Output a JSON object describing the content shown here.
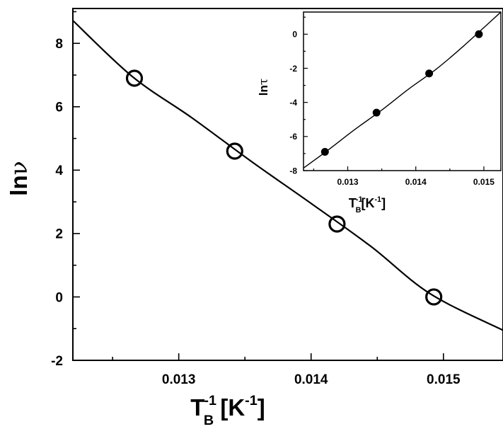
{
  "chart_data": [
    {
      "type": "scatter",
      "title": "",
      "xlabel": {
        "main": "T",
        "sub": "B",
        "sup": "-1",
        "rest": " [K",
        "unit_sup": "-1",
        "close": "]"
      },
      "ylabel": {
        "main": "ln",
        "greek": "ν"
      },
      "xlim": [
        0.0122,
        0.01545
      ],
      "ylim": [
        -2,
        9.1
      ],
      "x_ticks": [
        0.013,
        0.014,
        0.015
      ],
      "x_tick_labels": [
        "0.013",
        "0.014",
        "0.015"
      ],
      "y_ticks": [
        -2,
        0,
        2,
        4,
        6,
        8
      ],
      "y_tick_labels": [
        "-2",
        "0",
        "2",
        "4",
        "6",
        "8"
      ],
      "grid": false,
      "series": [
        {
          "marker": "open-circle",
          "x": [
            0.012665,
            0.013423,
            0.014196,
            0.014927
          ],
          "y": [
            6.9,
            4.6,
            2.3,
            0.0
          ]
        }
      ],
      "fit_curve": {
        "x": [
          0.0122,
          0.01265,
          0.0131,
          0.01355,
          0.014,
          0.01445,
          0.0149,
          0.01545
        ],
        "y": [
          8.72,
          6.95,
          5.65,
          4.27,
          2.95,
          1.6,
          0.1,
          -1.05
        ]
      }
    },
    {
      "type": "scatter",
      "title": "",
      "position": "top-right inset",
      "xlabel": {
        "main": "T",
        "sub": "B",
        "sup": "-1",
        "rest": "[K",
        "unit_sup": "-1",
        "close": "]"
      },
      "ylabel": {
        "main": "ln",
        "greek": "τ"
      },
      "xlim": [
        0.01235,
        0.01525
      ],
      "ylim": [
        -8,
        1.3
      ],
      "x_ticks": [
        0.013,
        0.014,
        0.015
      ],
      "x_tick_labels": [
        "0.013",
        "0.014",
        "0.015"
      ],
      "y_ticks": [
        -8,
        -6,
        -4,
        -2,
        0
      ],
      "y_tick_labels": [
        "-8",
        "-6",
        "-4",
        "-2",
        "0"
      ],
      "grid": false,
      "series": [
        {
          "marker": "filled-circle",
          "x": [
            0.012665,
            0.013423,
            0.014196,
            0.014927
          ],
          "y": [
            -6.9,
            -4.6,
            -2.3,
            0.0
          ]
        }
      ],
      "fit_curve": {
        "x": [
          0.01235,
          0.0127,
          0.0131,
          0.0135,
          0.0139,
          0.0143,
          0.0147,
          0.01525
        ],
        "y": [
          -7.85,
          -6.83,
          -5.6,
          -4.45,
          -3.2,
          -2.05,
          -0.7,
          1.3
        ]
      }
    }
  ]
}
